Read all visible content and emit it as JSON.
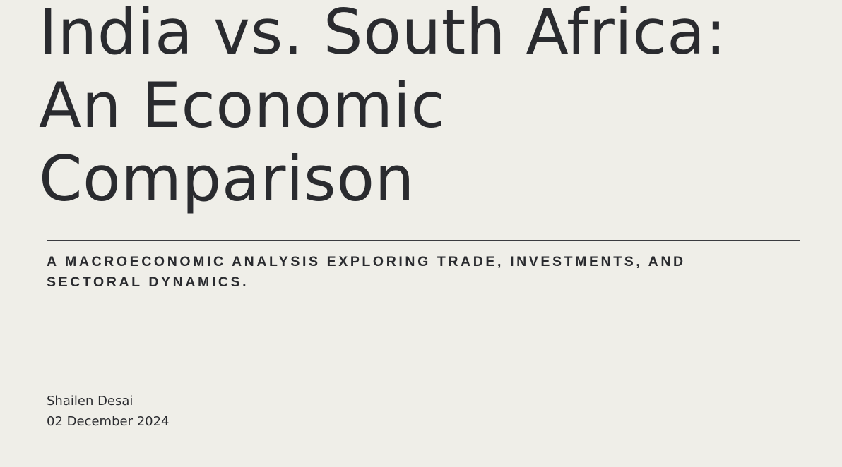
{
  "slide": {
    "title_lines": [
      "India vs. South Africa:",
      "An Economic",
      "Comparison"
    ],
    "subtitle_lines": [
      "A MACROECONOMIC ANALYSIS EXPLORING TRADE, INVESTMENTS, AND",
      "SECTORAL DYNAMICS."
    ],
    "author": "Shailen Desai",
    "date": "02 December 2024"
  },
  "colors": {
    "background": "#efeee8",
    "text": "#2a2b2f",
    "divider": "#3a3b3f"
  }
}
